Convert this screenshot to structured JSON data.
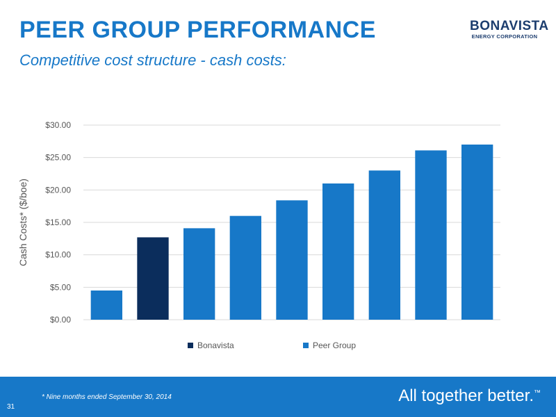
{
  "slide": {
    "title": "PEER GROUP PERFORMANCE",
    "subtitle": "Competitive cost structure - cash costs:"
  },
  "logo": {
    "name": "BONAVISTA",
    "tagline": "ENERGY CORPORATION"
  },
  "footer": {
    "footnote": "* Nine months ended September 30, 2014",
    "page_number": "31",
    "slogan": "All together better.",
    "slogan_mark": "™"
  },
  "colors": {
    "brand_blue": "#1778c8",
    "bonavista_bar": "#0b2d5c",
    "peer_bar": "#1778c8"
  },
  "chart_data": {
    "type": "bar",
    "ylabel": "Cash Costs* ($/boe)",
    "ylim": [
      0,
      30
    ],
    "yticks": [
      "$0.00",
      "$5.00",
      "$10.00",
      "$15.00",
      "$20.00",
      "$25.00",
      "$30.00"
    ],
    "ytick_values": [
      0,
      5,
      10,
      15,
      20,
      25,
      30
    ],
    "grid": true,
    "legend_position": "bottom",
    "legend": [
      {
        "name": "Bonavista",
        "color": "#0b2d5c"
      },
      {
        "name": "Peer Group",
        "color": "#1778c8"
      }
    ],
    "bars": [
      {
        "value": 4.5,
        "series": "Peer Group"
      },
      {
        "value": 12.7,
        "series": "Bonavista"
      },
      {
        "value": 14.1,
        "series": "Peer Group"
      },
      {
        "value": 16.0,
        "series": "Peer Group"
      },
      {
        "value": 18.4,
        "series": "Peer Group"
      },
      {
        "value": 21.0,
        "series": "Peer Group"
      },
      {
        "value": 23.0,
        "series": "Peer Group"
      },
      {
        "value": 26.1,
        "series": "Peer Group"
      },
      {
        "value": 27.0,
        "series": "Peer Group"
      }
    ]
  }
}
